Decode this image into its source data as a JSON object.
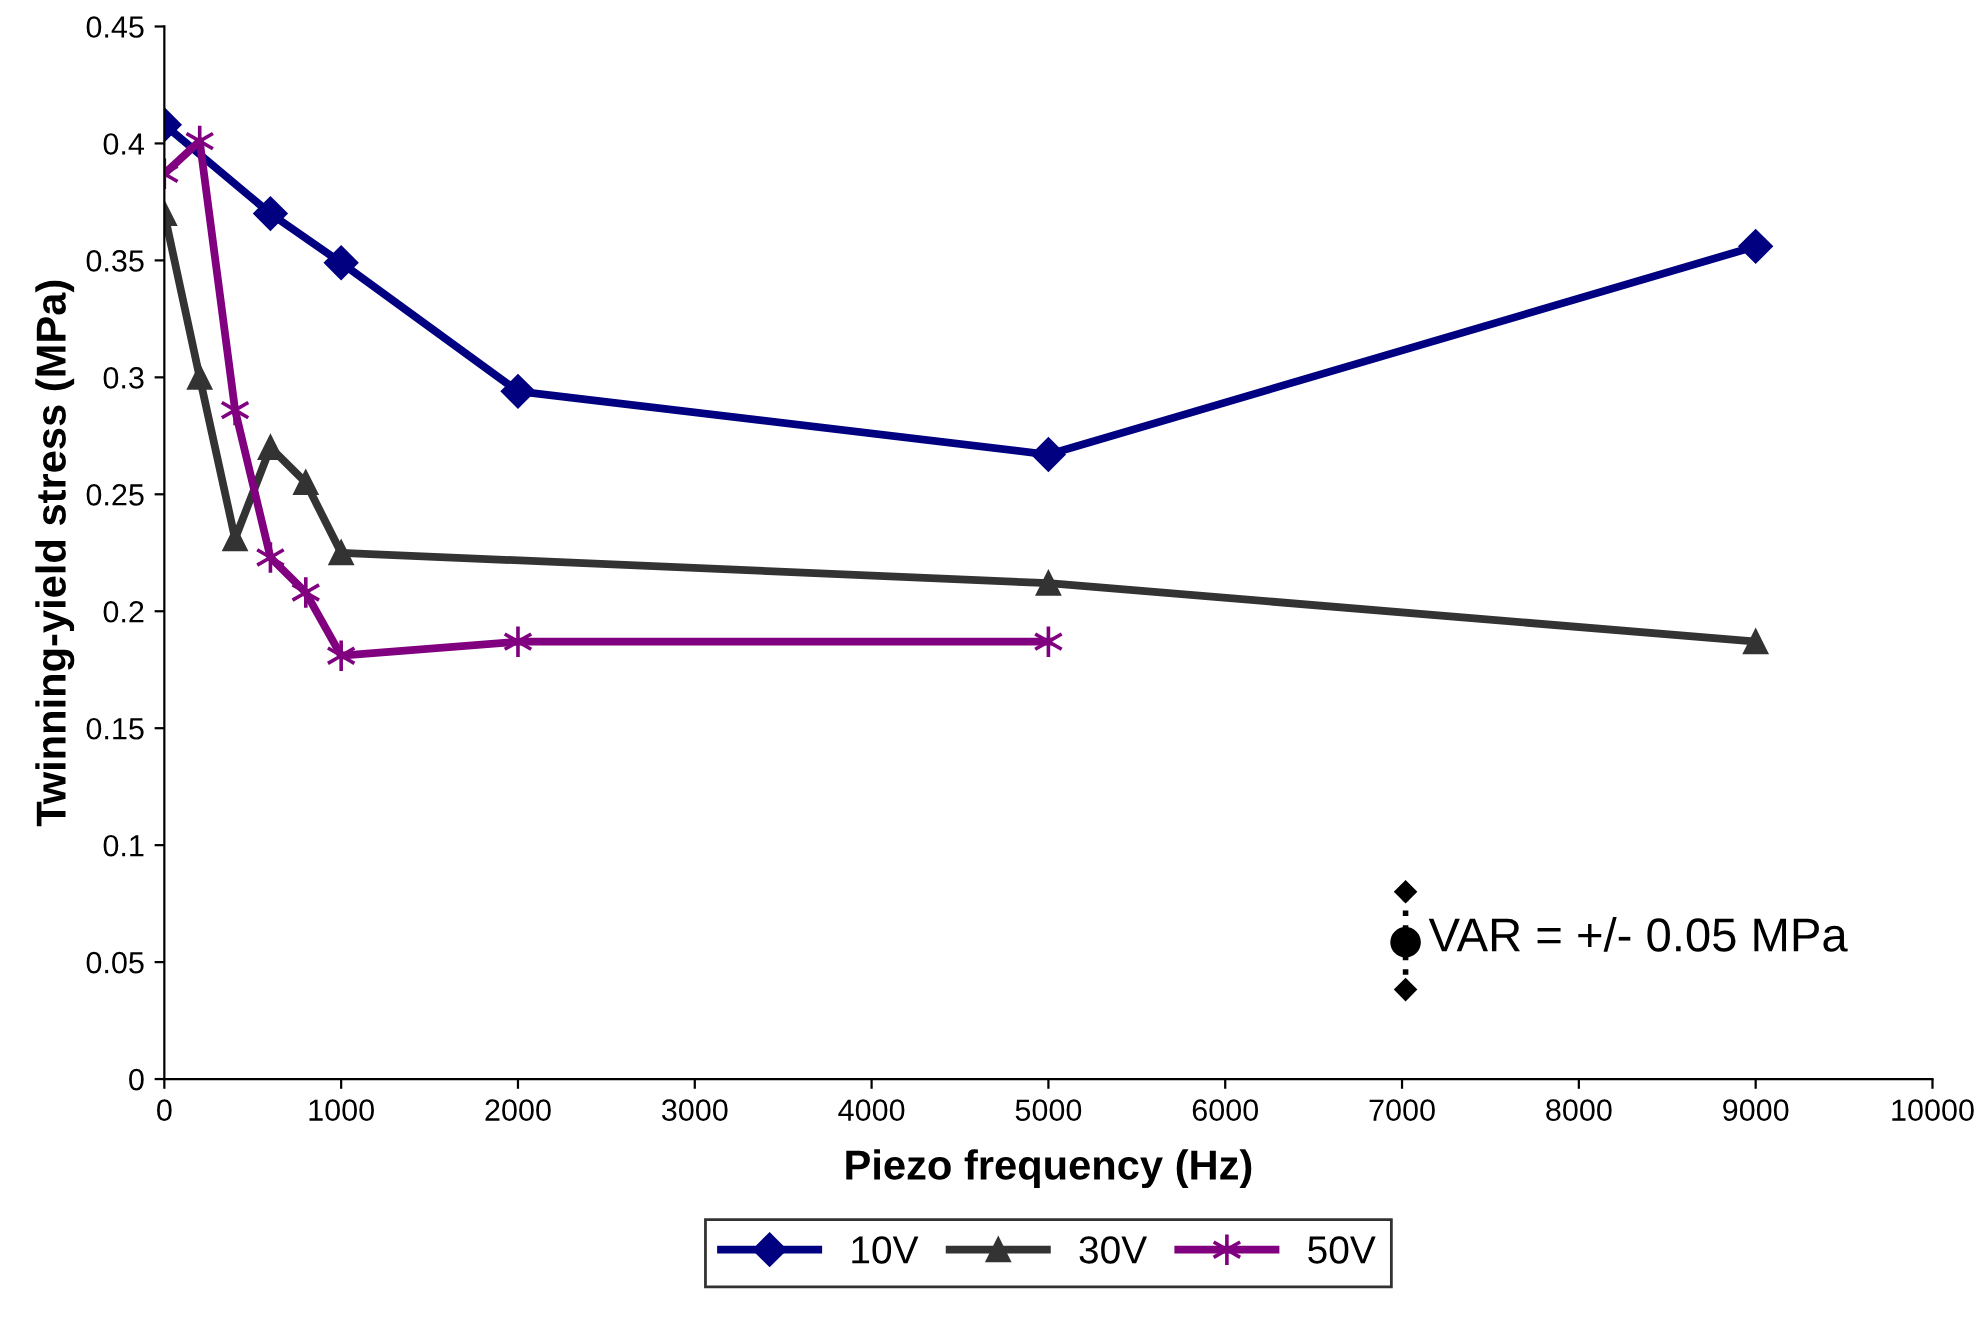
{
  "chart_data": {
    "type": "line",
    "xlabel": "Piezo frequency (Hz)",
    "ylabel": "Twinning-yield stress (MPa)",
    "series": [
      {
        "name": "10V",
        "color": "#000080",
        "marker": "diamond",
        "x": [
          0,
          600,
          1000,
          2000,
          5000,
          9000
        ],
        "values": [
          0.408,
          0.37,
          0.349,
          0.294,
          0.267,
          0.356
        ]
      },
      {
        "name": "30V",
        "color": "#333333",
        "marker": "triangle",
        "x": [
          0,
          200,
          400,
          600,
          800,
          1000,
          5000,
          9000
        ],
        "values": [
          0.37,
          0.3,
          0.231,
          0.27,
          0.255,
          0.225,
          0.212,
          0.187
        ]
      },
      {
        "name": "50V",
        "color": "#800080",
        "marker": "cross",
        "x": [
          0,
          200,
          400,
          600,
          800,
          1000,
          2000,
          5000
        ],
        "values": [
          0.387,
          0.401,
          0.286,
          0.223,
          0.208,
          0.181,
          0.187,
          0.187
        ]
      }
    ],
    "xlim": [
      0,
      10000
    ],
    "xticks": [
      0,
      1000,
      2000,
      3000,
      4000,
      5000,
      6000,
      7000,
      8000,
      9000,
      10000
    ],
    "ylim": [
      0,
      0.45
    ],
    "yticks": [
      0,
      0.05,
      0.1,
      0.15,
      0.2,
      0.25,
      0.3,
      0.35,
      0.4,
      0.45
    ],
    "annotations": [
      "VAR = +/- 0.05 MPa"
    ],
    "grid": false,
    "legend": "bottom",
    "line_style": "solid"
  }
}
